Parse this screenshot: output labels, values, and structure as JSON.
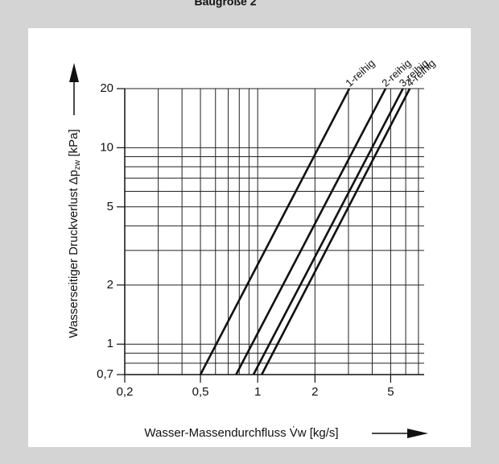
{
  "chart_data": {
    "type": "line",
    "title": "Baugröße 2",
    "ylabel": [
      "Wasserseitiger Druckverlust  Δp",
      "zw",
      " [kPa]"
    ],
    "xlabel": "Wasser-Massendurchfluss  V̇w  [kg/s]",
    "xlog": true,
    "ylog": true,
    "grid": true,
    "xlim": [
      0.2,
      7.5
    ],
    "ylim": [
      0.7,
      20
    ],
    "xticks": [
      {
        "value": 0.2,
        "label": "0,2"
      },
      {
        "value": 0.5,
        "label": "0,5"
      },
      1,
      2,
      5
    ],
    "yticks": [
      {
        "value": 0.7,
        "label": "0,7"
      },
      1,
      2,
      5,
      10,
      20
    ],
    "xgrid": [
      0.3,
      0.4,
      0.5,
      0.6,
      0.7,
      0.8,
      0.9,
      1,
      2,
      3,
      4,
      5,
      6,
      7
    ],
    "ygrid": [
      0.8,
      0.9,
      1,
      2,
      3,
      4,
      5,
      6,
      7,
      8,
      9,
      10,
      20
    ],
    "series": [
      {
        "name": "1-reihig",
        "color": "#111111",
        "x": [
          0.5,
          3.03
        ],
        "values": [
          0.7,
          20
        ]
      },
      {
        "name": "2-reihig",
        "color": "#111111",
        "x": [
          0.77,
          4.7
        ],
        "values": [
          0.7,
          20
        ]
      },
      {
        "name": "3-reihig",
        "color": "#111111",
        "x": [
          0.95,
          5.8
        ],
        "values": [
          0.7,
          20
        ]
      },
      {
        "name": "4-reihig",
        "color": "#111111",
        "x": [
          1.05,
          6.3
        ],
        "values": [
          0.7,
          20
        ]
      }
    ]
  }
}
